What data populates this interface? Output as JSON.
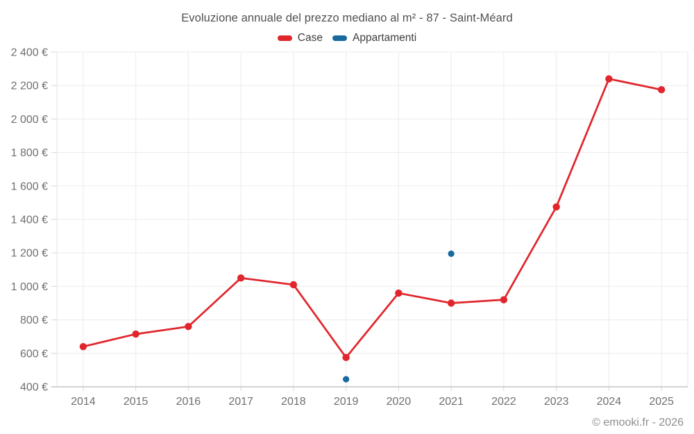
{
  "header": {
    "title": "Evoluzione annuale del prezzo mediano al m² - 87 - Saint-Méard"
  },
  "legend": {
    "items": [
      {
        "label": "Case",
        "color": "#e0262c"
      },
      {
        "label": "Appartamenti",
        "color": "#17699e"
      }
    ]
  },
  "footer": {
    "credit": "© emooki.fr - 2026"
  },
  "chart_data": {
    "type": "line",
    "title": "Evoluzione annuale del prezzo mediano al m² - 87 - Saint-Méard",
    "categories": [
      "2014",
      "2015",
      "2016",
      "2017",
      "2018",
      "2019",
      "2020",
      "2021",
      "2022",
      "2023",
      "2024",
      "2025"
    ],
    "series": [
      {
        "name": "Case",
        "color": "#e0262c",
        "line": true,
        "values": [
          640,
          715,
          760,
          1050,
          1010,
          575,
          960,
          900,
          920,
          1475,
          2240,
          2175
        ]
      },
      {
        "name": "Appartamenti",
        "color": "#17699e",
        "line": false,
        "values": [
          null,
          null,
          null,
          null,
          null,
          445,
          null,
          1195,
          null,
          null,
          null,
          null
        ]
      }
    ],
    "xlabel": "",
    "ylabel": "",
    "ylim": [
      400,
      2400
    ],
    "y_tick_step": 200,
    "y_ticks": [
      {
        "value": 400,
        "label": "400 €"
      },
      {
        "value": 600,
        "label": "600 €"
      },
      {
        "value": 800,
        "label": "800 €"
      },
      {
        "value": 1000,
        "label": "1 000 €"
      },
      {
        "value": 1200,
        "label": "1 200 €"
      },
      {
        "value": 1400,
        "label": "1 400 €"
      },
      {
        "value": 1600,
        "label": "1 600 €"
      },
      {
        "value": 1800,
        "label": "1 800 €"
      },
      {
        "value": 2000,
        "label": "2 000 €"
      },
      {
        "value": 2200,
        "label": "2 200 €"
      },
      {
        "value": 2400,
        "label": "2 400 €"
      }
    ],
    "grid": true,
    "legend_position": "top"
  }
}
